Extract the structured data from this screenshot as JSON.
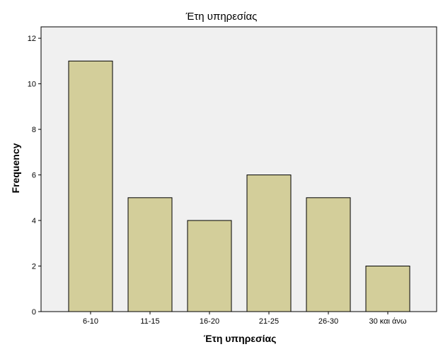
{
  "chart_data": {
    "type": "bar",
    "title": "Έτη υπηρεσίας",
    "xlabel": "Έτη υπηρεσίας",
    "ylabel": "Frequency",
    "categories": [
      "6-10",
      "11-15",
      "16-20",
      "21-25",
      "26-30",
      "30 και άνω"
    ],
    "values": [
      11,
      5,
      4,
      6,
      5,
      2
    ],
    "ylim": [
      0,
      12.5
    ],
    "yticks": [
      "0",
      "2",
      "4",
      "6",
      "8",
      "10",
      "12"
    ],
    "grid": false,
    "colors": {
      "bar_fill": "#d3ce9a",
      "bar_stroke": "#000000",
      "plot_background": "#f0f0f0"
    }
  }
}
